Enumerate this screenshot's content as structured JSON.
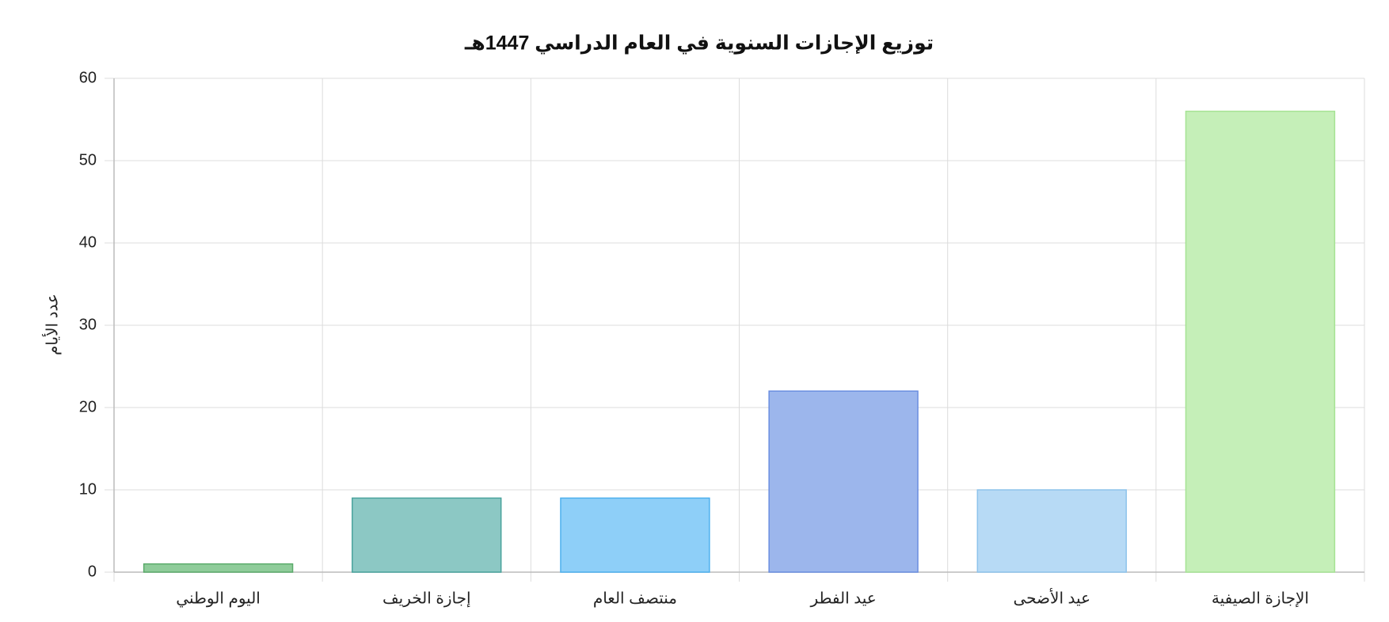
{
  "chart_data": {
    "type": "bar",
    "title": "توزيع الإجازات السنوية في العام الدراسي 1447هـ",
    "y_label": "عدد الأيام",
    "categories": [
      "اليوم الوطني",
      "إجازة الخريف",
      "منتصف العام",
      "عيد الفطر",
      "عيد الأضحى",
      "الإجازة الصيفية"
    ],
    "values": [
      1,
      9,
      9,
      22,
      10,
      56
    ],
    "colors": [
      "#8fcc9a",
      "#8cc8c4",
      "#8ecff8",
      "#9cb6ec",
      "#b7daf5",
      "#c5efb8"
    ],
    "border_colors": [
      "#5aaa6a",
      "#4aa39d",
      "#4db0ee",
      "#6a8ee0",
      "#8ec3ec",
      "#a6e394"
    ],
    "ylim": [
      0,
      60
    ],
    "yticks": [
      0,
      10,
      20,
      30,
      40,
      50,
      60
    ],
    "grid": true
  }
}
